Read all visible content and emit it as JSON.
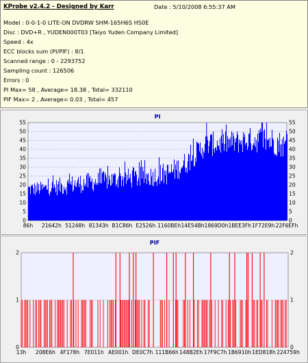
{
  "info": {
    "title": "KProbe v2.4.2 - Designed by Karr",
    "date": "Date : 5/10/2008 6:55:37 AM",
    "lines": [
      "Model : 0-0-1-0 LITE-ON DVDRW SHM-165H6S HS0E",
      "Disc : DVD+R , YUDEN000T03 [Taiyo Yuden Company Limited]",
      "Speed : 4x",
      "ECC blocks sum (PI/PIF) : 8/1",
      "Scanned range : 0 - 2293752",
      "Sampling count : 126506",
      "Errors : 0",
      "PI Max= 58 , Average= 18.38 , Total= 332110",
      "PIF Max= 2 , Average= 0.03 , Total= 457"
    ]
  },
  "colors": {
    "pi": "#0000ff",
    "pif": "#ff0000",
    "plot_bg": "#eef0ff",
    "panel_bg": "#f0f0f0"
  },
  "chart_data": [
    {
      "type": "area",
      "title": "PI",
      "ylim": [
        0,
        55
      ],
      "yticks": [
        "0",
        "5",
        "10",
        "15",
        "20",
        "25",
        "30",
        "35",
        "40",
        "45",
        "50",
        "55"
      ],
      "xticks": [
        "86h",
        "21642h",
        "51248h",
        "81343h",
        "B1C86h",
        "E2526h",
        "1160BEh",
        "14E54Bh",
        "1869D0h",
        "1BEE3Fh",
        "1F72E9h",
        "22F6EFh"
      ],
      "grid": true,
      "envelope": [
        [
          0.0,
          13,
          22
        ],
        [
          0.06,
          14,
          22
        ],
        [
          0.12,
          14,
          24
        ],
        [
          0.18,
          15,
          26
        ],
        [
          0.24,
          16,
          27
        ],
        [
          0.3,
          17,
          28
        ],
        [
          0.36,
          18,
          29
        ],
        [
          0.42,
          18,
          30
        ],
        [
          0.48,
          19,
          31
        ],
        [
          0.54,
          20,
          33
        ],
        [
          0.58,
          23,
          36
        ],
        [
          0.62,
          27,
          40
        ],
        [
          0.66,
          33,
          46
        ],
        [
          0.69,
          36,
          50
        ],
        [
          0.72,
          36,
          50
        ],
        [
          0.76,
          37,
          50
        ],
        [
          0.8,
          37,
          51
        ],
        [
          0.84,
          38,
          52
        ],
        [
          0.88,
          38,
          53
        ],
        [
          0.92,
          37,
          54
        ],
        [
          0.96,
          36,
          52
        ],
        [
          1.0,
          35,
          48
        ]
      ],
      "max": 58
    },
    {
      "type": "bar",
      "title": "PIF",
      "ylim": [
        0,
        2
      ],
      "yticks": [
        "0",
        "1",
        "2"
      ],
      "xticks": [
        "13h",
        "208E6h",
        "4F178h",
        "7E011h",
        "AE001h",
        "DE0C7h",
        "111B66h",
        "148B2Eh",
        "17F9C7h",
        "1B6910h",
        "1ED818h",
        "224759h"
      ],
      "grid": true,
      "level2_positions": [
        0.195,
        0.355,
        0.37,
        0.405,
        0.42,
        0.43,
        0.495,
        0.545,
        0.57,
        0.58,
        0.615,
        0.645,
        0.71,
        0.78,
        0.8,
        0.845,
        0.85,
        0.865,
        0.895,
        0.91
      ],
      "density_of_level1": 0.55,
      "max": 2
    }
  ]
}
